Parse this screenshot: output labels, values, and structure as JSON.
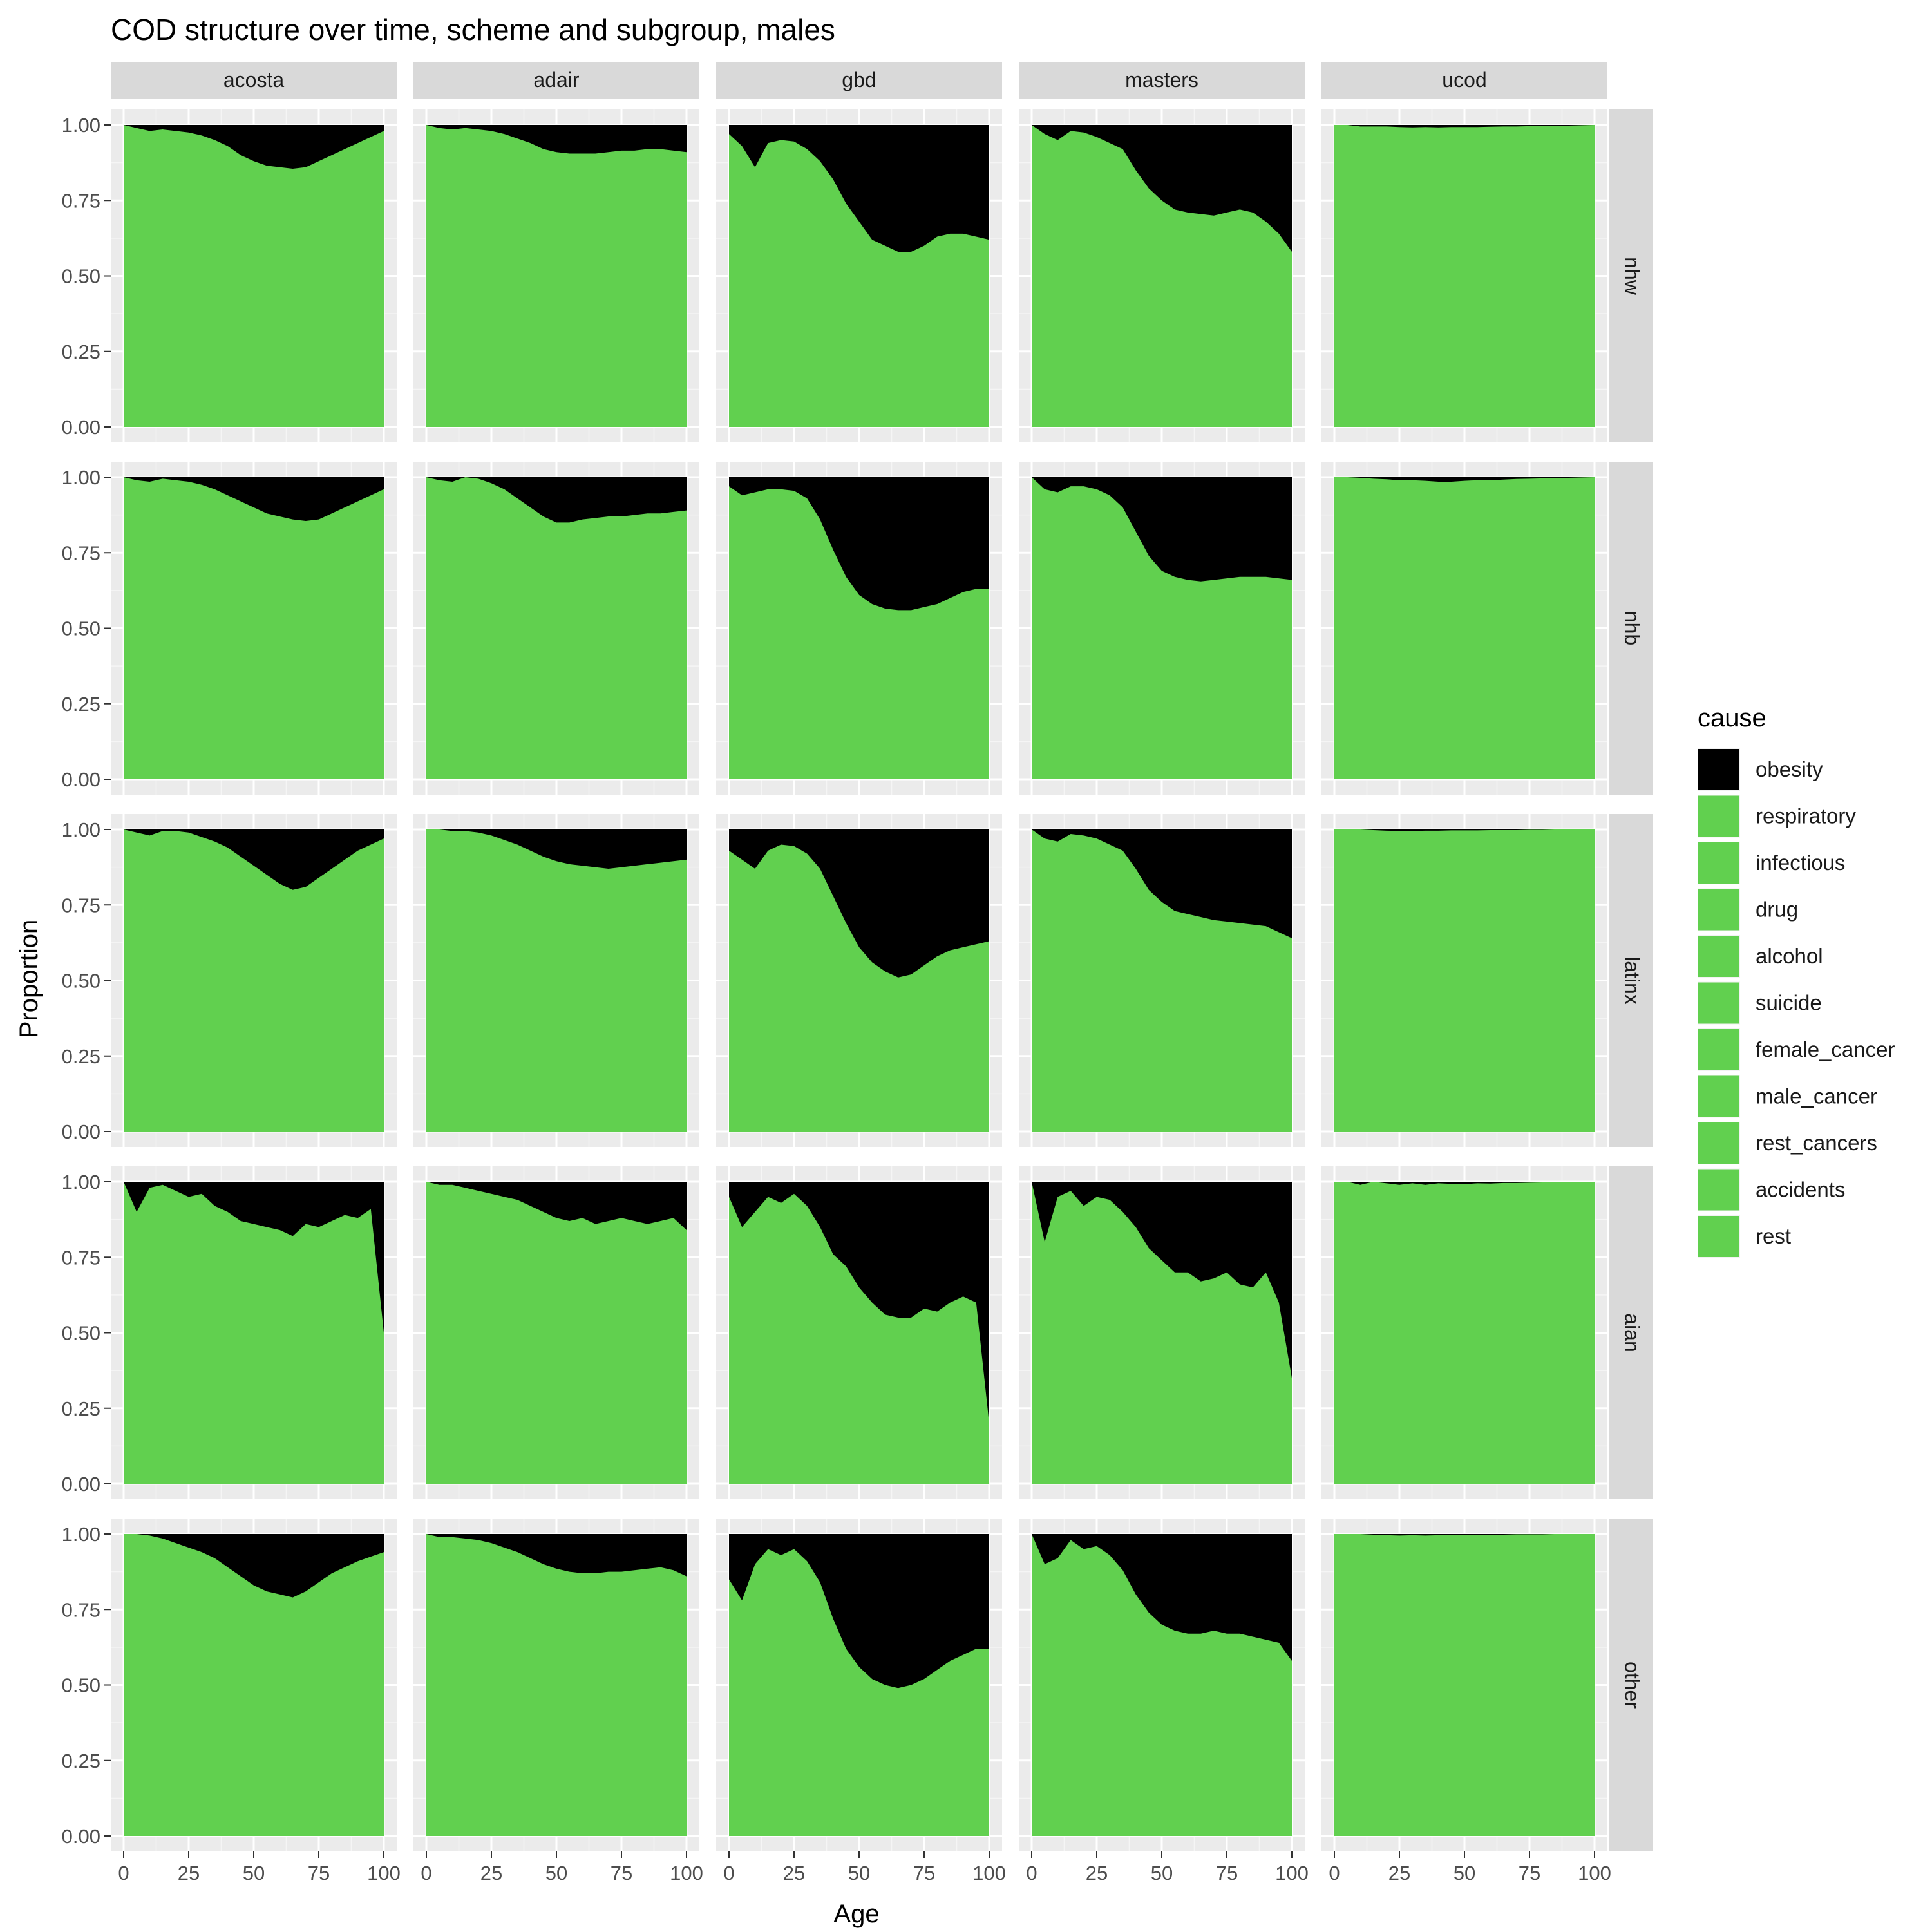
{
  "chart_data": {
    "type": "area",
    "title": "COD structure over time, scheme and subgroup, males",
    "xlabel": "Age",
    "ylabel": "Proportion",
    "xlim": [
      0,
      100
    ],
    "ylim": [
      0,
      1
    ],
    "x_ticks": [
      "0",
      "25",
      "50",
      "75",
      "100"
    ],
    "y_ticks": [
      "0.00",
      "0.25",
      "0.50",
      "0.75",
      "1.00"
    ],
    "grid": true,
    "legend_position": "right",
    "legend_title": "cause",
    "legend": [
      {
        "name": "obesity",
        "color": "#000000"
      },
      {
        "name": "respiratory",
        "color": "#61D04F"
      },
      {
        "name": "infectious",
        "color": "#61D04F"
      },
      {
        "name": "drug",
        "color": "#61D04F"
      },
      {
        "name": "alcohol",
        "color": "#61D04F"
      },
      {
        "name": "suicide",
        "color": "#61D04F"
      },
      {
        "name": "female_cancer",
        "color": "#61D04F"
      },
      {
        "name": "male_cancer",
        "color": "#61D04F"
      },
      {
        "name": "rest_cancers",
        "color": "#61D04F"
      },
      {
        "name": "accidents",
        "color": "#61D04F"
      },
      {
        "name": "rest",
        "color": "#61D04F"
      }
    ],
    "columns": [
      "acosta",
      "adair",
      "gbd",
      "masters",
      "ucod"
    ],
    "rows": [
      "nhw",
      "nhb",
      "latinx",
      "aian",
      "other"
    ],
    "x": [
      0,
      5,
      10,
      15,
      20,
      25,
      30,
      35,
      40,
      45,
      50,
      55,
      60,
      65,
      70,
      75,
      80,
      85,
      90,
      95,
      100
    ],
    "series_note_colors": {
      "obesity": "#000000",
      "other_causes": "#61D04F"
    },
    "panels": [
      {
        "row": "nhw",
        "col": "acosta",
        "upper_green": [
          1.0,
          0.99,
          0.98,
          0.985,
          0.98,
          0.975,
          0.965,
          0.95,
          0.93,
          0.9,
          0.88,
          0.865,
          0.86,
          0.855,
          0.86,
          0.88,
          0.9,
          0.92,
          0.94,
          0.96,
          0.98
        ]
      },
      {
        "row": "nhw",
        "col": "adair",
        "upper_green": [
          1.0,
          0.99,
          0.985,
          0.99,
          0.985,
          0.98,
          0.97,
          0.955,
          0.94,
          0.92,
          0.91,
          0.905,
          0.905,
          0.905,
          0.91,
          0.915,
          0.915,
          0.92,
          0.92,
          0.915,
          0.91
        ]
      },
      {
        "row": "nhw",
        "col": "gbd",
        "upper_green": [
          0.97,
          0.93,
          0.86,
          0.94,
          0.95,
          0.945,
          0.92,
          0.88,
          0.82,
          0.74,
          0.68,
          0.62,
          0.6,
          0.58,
          0.58,
          0.6,
          0.63,
          0.64,
          0.64,
          0.63,
          0.62
        ]
      },
      {
        "row": "nhw",
        "col": "masters",
        "upper_green": [
          1.0,
          0.97,
          0.95,
          0.98,
          0.975,
          0.96,
          0.94,
          0.92,
          0.85,
          0.79,
          0.75,
          0.72,
          0.71,
          0.705,
          0.7,
          0.71,
          0.72,
          0.71,
          0.68,
          0.64,
          0.58
        ]
      },
      {
        "row": "nhw",
        "col": "ucod",
        "upper_green": [
          1.0,
          1.0,
          0.995,
          0.995,
          0.995,
          0.993,
          0.992,
          0.993,
          0.992,
          0.993,
          0.993,
          0.993,
          0.994,
          0.995,
          0.995,
          0.996,
          0.997,
          0.998,
          0.998,
          0.999,
          1.0
        ]
      },
      {
        "row": "nhb",
        "col": "acosta",
        "upper_green": [
          1.0,
          0.99,
          0.985,
          0.995,
          0.99,
          0.985,
          0.975,
          0.96,
          0.94,
          0.92,
          0.9,
          0.88,
          0.87,
          0.86,
          0.855,
          0.86,
          0.88,
          0.9,
          0.92,
          0.94,
          0.96
        ]
      },
      {
        "row": "nhb",
        "col": "adair",
        "upper_green": [
          1.0,
          0.99,
          0.985,
          1.0,
          0.995,
          0.98,
          0.96,
          0.93,
          0.9,
          0.87,
          0.85,
          0.85,
          0.86,
          0.865,
          0.87,
          0.87,
          0.875,
          0.88,
          0.88,
          0.885,
          0.89
        ]
      },
      {
        "row": "nhb",
        "col": "gbd",
        "upper_green": [
          0.97,
          0.94,
          0.95,
          0.96,
          0.96,
          0.955,
          0.93,
          0.86,
          0.76,
          0.67,
          0.61,
          0.58,
          0.565,
          0.56,
          0.56,
          0.57,
          0.58,
          0.6,
          0.62,
          0.63,
          0.63
        ]
      },
      {
        "row": "nhb",
        "col": "masters",
        "upper_green": [
          1.0,
          0.96,
          0.95,
          0.97,
          0.97,
          0.96,
          0.94,
          0.9,
          0.82,
          0.74,
          0.69,
          0.67,
          0.66,
          0.655,
          0.66,
          0.665,
          0.67,
          0.67,
          0.67,
          0.665,
          0.66
        ]
      },
      {
        "row": "nhb",
        "col": "ucod",
        "upper_green": [
          1.0,
          1.0,
          0.998,
          0.995,
          0.993,
          0.99,
          0.99,
          0.988,
          0.985,
          0.985,
          0.988,
          0.99,
          0.99,
          0.992,
          0.994,
          0.995,
          0.996,
          0.997,
          0.998,
          0.999,
          1.0
        ]
      },
      {
        "row": "latinx",
        "col": "acosta",
        "upper_green": [
          1.0,
          0.99,
          0.98,
          0.995,
          0.995,
          0.99,
          0.975,
          0.96,
          0.94,
          0.91,
          0.88,
          0.85,
          0.82,
          0.8,
          0.81,
          0.84,
          0.87,
          0.9,
          0.93,
          0.95,
          0.97
        ]
      },
      {
        "row": "latinx",
        "col": "adair",
        "upper_green": [
          1.0,
          1.0,
          0.995,
          0.995,
          0.99,
          0.98,
          0.965,
          0.95,
          0.93,
          0.91,
          0.895,
          0.885,
          0.88,
          0.875,
          0.87,
          0.875,
          0.88,
          0.885,
          0.89,
          0.895,
          0.9
        ]
      },
      {
        "row": "latinx",
        "col": "gbd",
        "upper_green": [
          0.93,
          0.9,
          0.87,
          0.93,
          0.95,
          0.945,
          0.92,
          0.87,
          0.78,
          0.69,
          0.61,
          0.56,
          0.53,
          0.51,
          0.52,
          0.55,
          0.58,
          0.6,
          0.61,
          0.62,
          0.63
        ]
      },
      {
        "row": "latinx",
        "col": "masters",
        "upper_green": [
          1.0,
          0.97,
          0.96,
          0.985,
          0.98,
          0.97,
          0.95,
          0.93,
          0.87,
          0.8,
          0.76,
          0.73,
          0.72,
          0.71,
          0.7,
          0.695,
          0.69,
          0.685,
          0.68,
          0.66,
          0.64
        ]
      },
      {
        "row": "latinx",
        "col": "ucod",
        "upper_green": [
          1.0,
          1.0,
          1.0,
          0.998,
          0.996,
          0.995,
          0.995,
          0.996,
          0.996,
          0.997,
          0.997,
          0.997,
          0.998,
          0.998,
          0.998,
          0.999,
          0.999,
          1.0,
          1.0,
          1.0,
          1.0
        ]
      },
      {
        "row": "aian",
        "col": "acosta",
        "upper_green": [
          1.0,
          0.9,
          0.98,
          0.99,
          0.97,
          0.95,
          0.96,
          0.92,
          0.9,
          0.87,
          0.86,
          0.85,
          0.84,
          0.82,
          0.86,
          0.85,
          0.87,
          0.89,
          0.88,
          0.91,
          0.5
        ]
      },
      {
        "row": "aian",
        "col": "adair",
        "upper_green": [
          1.0,
          0.99,
          0.99,
          0.98,
          0.97,
          0.96,
          0.95,
          0.94,
          0.92,
          0.9,
          0.88,
          0.87,
          0.88,
          0.86,
          0.87,
          0.88,
          0.87,
          0.86,
          0.87,
          0.88,
          0.84
        ]
      },
      {
        "row": "aian",
        "col": "gbd",
        "upper_green": [
          0.95,
          0.85,
          0.9,
          0.95,
          0.93,
          0.96,
          0.92,
          0.85,
          0.76,
          0.72,
          0.65,
          0.6,
          0.56,
          0.55,
          0.55,
          0.58,
          0.57,
          0.6,
          0.62,
          0.6,
          0.2
        ]
      },
      {
        "row": "aian",
        "col": "masters",
        "upper_green": [
          1.0,
          0.8,
          0.95,
          0.97,
          0.92,
          0.95,
          0.94,
          0.9,
          0.85,
          0.78,
          0.74,
          0.7,
          0.7,
          0.67,
          0.68,
          0.7,
          0.66,
          0.65,
          0.7,
          0.6,
          0.35
        ]
      },
      {
        "row": "aian",
        "col": "ucod",
        "upper_green": [
          1.0,
          1.0,
          0.99,
          1.0,
          0.995,
          0.99,
          0.995,
          0.99,
          0.995,
          0.993,
          0.992,
          0.995,
          0.994,
          0.996,
          0.996,
          0.997,
          0.998,
          0.999,
          1.0,
          1.0,
          1.0
        ]
      },
      {
        "row": "other",
        "col": "acosta",
        "upper_green": [
          1.0,
          1.0,
          0.995,
          0.985,
          0.97,
          0.955,
          0.94,
          0.92,
          0.89,
          0.86,
          0.83,
          0.81,
          0.8,
          0.79,
          0.81,
          0.84,
          0.87,
          0.89,
          0.91,
          0.925,
          0.94
        ]
      },
      {
        "row": "other",
        "col": "adair",
        "upper_green": [
          1.0,
          0.99,
          0.99,
          0.985,
          0.98,
          0.97,
          0.955,
          0.94,
          0.92,
          0.9,
          0.885,
          0.875,
          0.87,
          0.87,
          0.875,
          0.875,
          0.88,
          0.885,
          0.89,
          0.88,
          0.86
        ]
      },
      {
        "row": "other",
        "col": "gbd",
        "upper_green": [
          0.85,
          0.78,
          0.9,
          0.95,
          0.93,
          0.95,
          0.91,
          0.84,
          0.72,
          0.62,
          0.56,
          0.52,
          0.5,
          0.49,
          0.5,
          0.52,
          0.55,
          0.58,
          0.6,
          0.62,
          0.62
        ]
      },
      {
        "row": "other",
        "col": "masters",
        "upper_green": [
          1.0,
          0.9,
          0.92,
          0.98,
          0.95,
          0.96,
          0.93,
          0.88,
          0.8,
          0.74,
          0.7,
          0.68,
          0.67,
          0.67,
          0.68,
          0.67,
          0.67,
          0.66,
          0.65,
          0.64,
          0.58
        ]
      },
      {
        "row": "other",
        "col": "ucod",
        "upper_green": [
          1.0,
          1.0,
          1.0,
          0.998,
          0.996,
          0.995,
          0.996,
          0.995,
          0.996,
          0.997,
          0.997,
          0.998,
          0.998,
          0.998,
          0.999,
          0.999,
          0.999,
          1.0,
          1.0,
          1.0,
          1.0
        ]
      }
    ]
  }
}
